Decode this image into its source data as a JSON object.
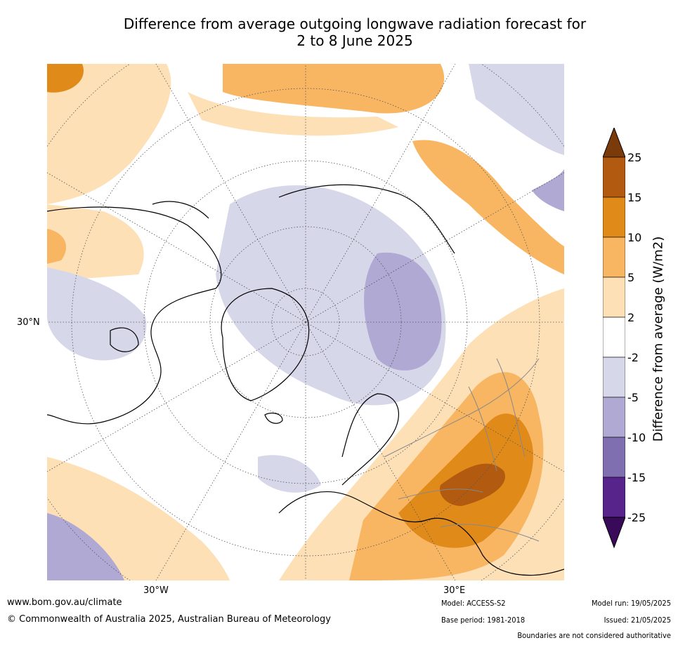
{
  "title_line1": "Difference from average outgoing longwave radiation forecast for",
  "title_line2": "2 to 8 June 2025",
  "axis": {
    "lat_label": "30°N",
    "lon_label_left": "30°W",
    "lon_label_right": "30°E"
  },
  "colorbar": {
    "title": "Difference from average (W/m2)",
    "ticks": [
      "25",
      "15",
      "10",
      "5",
      "2",
      "-2",
      "-5",
      "-10",
      "-15",
      "-25"
    ],
    "colors": [
      "#7a3a0a",
      "#b25a10",
      "#e08a1a",
      "#f8b562",
      "#fde0b6",
      "#ffffff",
      "#d7d7ea",
      "#b0a9d3",
      "#7f6fb0",
      "#56248a",
      "#3a0a5a"
    ]
  },
  "footer": {
    "url": "www.bom.gov.au/climate",
    "copyright": "© Commonwealth of Australia 2025, Australian Bureau of Meteorology",
    "model": "Model: ACCESS-S2",
    "base_period": "Base period: 1981-2018",
    "model_run": "Model run: 19/05/2025",
    "issued": "Issued: 21/05/2025",
    "disclaimer": "Boundaries are not considered authoritative"
  }
}
